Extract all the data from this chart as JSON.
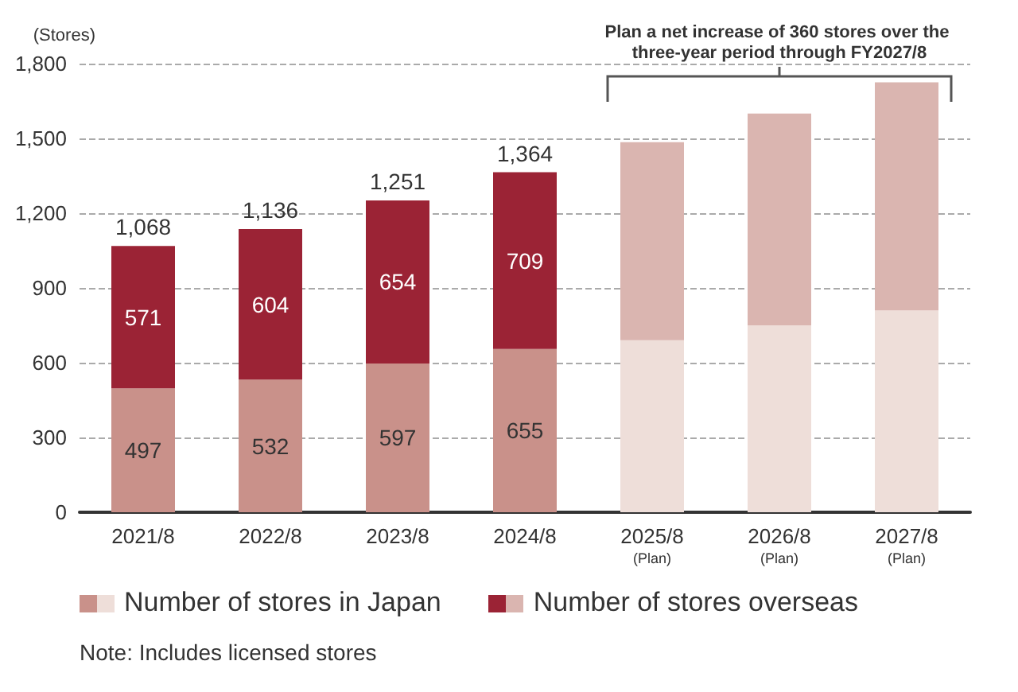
{
  "chart_data": {
    "type": "bar",
    "stacked": true,
    "ylabel": "(Stores)",
    "categories": [
      "2021/8",
      "2022/8",
      "2023/8",
      "2024/8",
      "2025/8\n(Plan)",
      "2026/8\n(Plan)",
      "2027/8\n(Plan)"
    ],
    "series": [
      {
        "name": "Number of stores in Japan",
        "color": "#c9918a",
        "colors": [
          "#c9918a",
          "#c9918a",
          "#c9918a",
          "#c9918a",
          "#eeded9",
          "#eeded9",
          "#eeded9"
        ],
        "values": [
          497,
          532,
          597,
          655,
          690,
          750,
          810
        ],
        "value_labels": [
          "497",
          "532",
          "597",
          "655",
          null,
          null,
          null
        ]
      },
      {
        "name": "Number of stores overseas",
        "color": "#9b2335",
        "colors": [
          "#9b2335",
          "#9b2335",
          "#9b2335",
          "#9b2335",
          "#dab5b0",
          "#dab5b0",
          "#dab5b0"
        ],
        "values": [
          571,
          604,
          654,
          709,
          795,
          850,
          915
        ],
        "value_labels": [
          "571",
          "604",
          "654",
          "709",
          null,
          null,
          null
        ]
      }
    ],
    "totals": [
      "1,068",
      "1,136",
      "1,251",
      "1,364",
      null,
      null,
      null
    ],
    "ylim": [
      0,
      1800
    ],
    "yticks": [
      0,
      300,
      600,
      900,
      {
        "value": 1200,
        "label": "1,200"
      },
      {
        "value": 1500,
        "label": "1,500"
      },
      {
        "value": 1800,
        "label": "1,800"
      }
    ],
    "grid": "y",
    "legend": "bottom",
    "annotations": [
      "Plan a net increase of 360 stores over the three-year period through FY2027/8",
      "Note: Includes licensed stores"
    ]
  }
}
